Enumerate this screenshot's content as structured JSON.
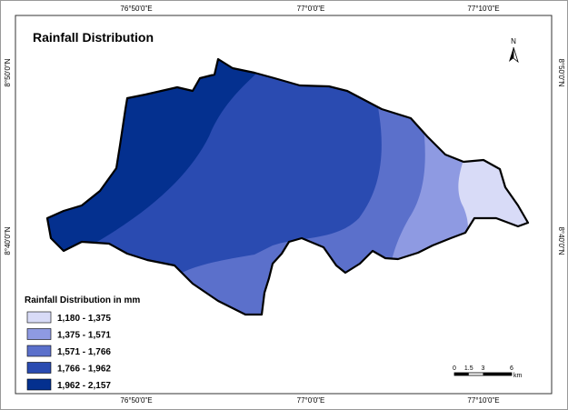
{
  "title": "Rainfall Distribution",
  "graticule": {
    "top": [
      "76°50'0\"E",
      "77°0'0\"E",
      "77°10'0\"E"
    ],
    "bottom": [
      "76°50'0\"E",
      "77°0'0\"E",
      "77°10'0\"E"
    ],
    "left": [
      "8°50'0\"N",
      "8°40'0\"N"
    ],
    "right": [
      "8°50'0\"N",
      "8°40'0\"N"
    ]
  },
  "north_arrow": "N",
  "legend": {
    "title": "Rainfall Distribution in mm",
    "items": [
      {
        "label": "1,180 - 1,375",
        "color": "#d8dbf7"
      },
      {
        "label": "1,375 - 1,571",
        "color": "#8e9ae2"
      },
      {
        "label": "1,571 - 1,766",
        "color": "#5b70cb"
      },
      {
        "label": "1,766 - 1,962",
        "color": "#2a4bb1"
      },
      {
        "label": "1,962 - 2,157",
        "color": "#04308f"
      }
    ]
  },
  "scale_bar": {
    "labels": [
      "0",
      "1.5",
      "3",
      "6"
    ],
    "unit": "km"
  }
}
